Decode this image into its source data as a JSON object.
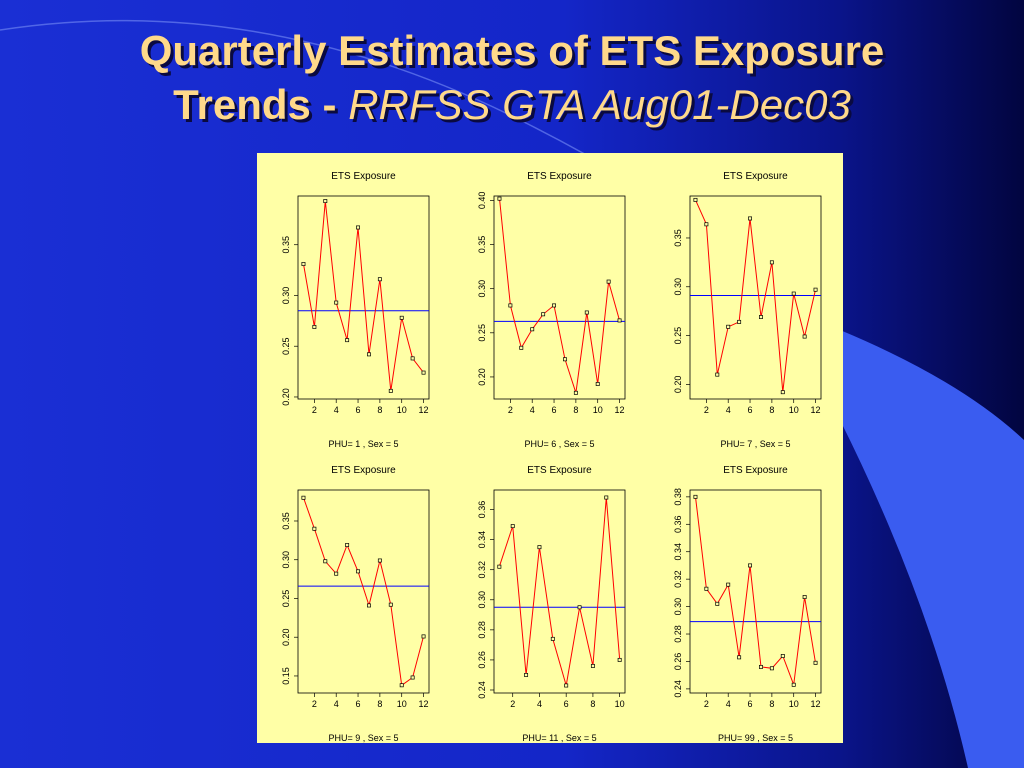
{
  "page": {
    "title_main": "Quarterly Estimates of  ETS Exposure",
    "title_line2_bold": "Trends - ",
    "title_line2_italic": "RRFSS GTA Aug01-Dec03"
  },
  "colors": {
    "background": "#1426c8",
    "panel": "#ffffa6",
    "series_line": "#ff0000",
    "reference_line": "#0000ff",
    "title_text": "#ffd98a"
  },
  "chart_data": [
    {
      "type": "line",
      "title": "ETS Exposure",
      "subtitle": "PHU= 1 , Sex = 5",
      "x": [
        1,
        2,
        3,
        4,
        5,
        6,
        7,
        8,
        9,
        10,
        11,
        12
      ],
      "values": [
        0.331,
        0.269,
        0.393,
        0.293,
        0.256,
        0.367,
        0.242,
        0.316,
        0.206,
        0.278,
        0.238,
        0.224
      ],
      "mean": 0.285,
      "xlim": [
        0.5,
        12.5
      ],
      "ylim": [
        0.198,
        0.398
      ],
      "xticks": [
        2,
        4,
        6,
        8,
        10,
        12
      ],
      "yticks": [
        0.2,
        0.25,
        0.3,
        0.35
      ],
      "ytick_labels": [
        "0.20",
        "0.25",
        "0.30",
        "0.35"
      ]
    },
    {
      "type": "line",
      "title": "ETS Exposure",
      "subtitle": "PHU= 6 , Sex = 5",
      "x": [
        1,
        2,
        3,
        4,
        5,
        6,
        7,
        8,
        9,
        10,
        11,
        12
      ],
      "values": [
        0.402,
        0.281,
        0.233,
        0.254,
        0.271,
        0.281,
        0.22,
        0.182,
        0.273,
        0.192,
        0.308,
        0.264
      ],
      "mean": 0.263,
      "xlim": [
        0.5,
        12.5
      ],
      "ylim": [
        0.175,
        0.405
      ],
      "xticks": [
        2,
        4,
        6,
        8,
        10,
        12
      ],
      "yticks": [
        0.2,
        0.25,
        0.3,
        0.35,
        0.4
      ],
      "ytick_labels": [
        "0.20",
        "0.25",
        "0.30",
        "0.35",
        "0.40"
      ]
    },
    {
      "type": "line",
      "title": "ETS Exposure",
      "subtitle": "PHU= 7 , Sex = 5",
      "x": [
        1,
        2,
        3,
        4,
        5,
        6,
        7,
        8,
        9,
        10,
        11,
        12
      ],
      "values": [
        0.389,
        0.364,
        0.21,
        0.259,
        0.264,
        0.37,
        0.269,
        0.325,
        0.192,
        0.293,
        0.249,
        0.297
      ],
      "mean": 0.291,
      "xlim": [
        0.5,
        12.5
      ],
      "ylim": [
        0.185,
        0.393
      ],
      "xticks": [
        2,
        4,
        6,
        8,
        10,
        12
      ],
      "yticks": [
        0.2,
        0.25,
        0.3,
        0.35
      ],
      "ytick_labels": [
        "0.20",
        "0.25",
        "0.30",
        "0.35"
      ]
    },
    {
      "type": "line",
      "title": "ETS Exposure",
      "subtitle": "PHU= 9 , Sex = 5",
      "x": [
        1,
        2,
        3,
        4,
        5,
        6,
        7,
        8,
        9,
        10,
        11,
        12
      ],
      "values": [
        0.38,
        0.34,
        0.298,
        0.282,
        0.319,
        0.285,
        0.241,
        0.299,
        0.242,
        0.138,
        0.148,
        0.201
      ],
      "mean": 0.266,
      "xlim": [
        0.5,
        12.5
      ],
      "ylim": [
        0.128,
        0.39
      ],
      "xticks": [
        2,
        4,
        6,
        8,
        10,
        12
      ],
      "yticks": [
        0.15,
        0.2,
        0.25,
        0.3,
        0.35
      ],
      "ytick_labels": [
        "0.15",
        "0.20",
        "0.25",
        "0.30",
        "0.35"
      ]
    },
    {
      "type": "line",
      "title": "ETS Exposure",
      "subtitle": "PHU= 11 , Sex = 5",
      "x": [
        1,
        2,
        3,
        4,
        5,
        6,
        7,
        8,
        9,
        10
      ],
      "values": [
        0.322,
        0.349,
        0.25,
        0.335,
        0.274,
        0.243,
        0.295,
        0.256,
        0.368,
        0.26
      ],
      "mean": 0.295,
      "xlim": [
        0.6,
        10.4
      ],
      "ylim": [
        0.238,
        0.373
      ],
      "xticks": [
        2,
        4,
        6,
        8,
        10
      ],
      "yticks": [
        0.24,
        0.26,
        0.28,
        0.3,
        0.32,
        0.34,
        0.36
      ],
      "ytick_labels": [
        "0.24",
        "0.26",
        "0.28",
        "0.30",
        "0.32",
        "0.34",
        "0.36"
      ]
    },
    {
      "type": "line",
      "title": "ETS Exposure",
      "subtitle": "PHU= 99 , Sex = 5",
      "x": [
        1,
        2,
        3,
        4,
        5,
        6,
        7,
        8,
        9,
        10,
        11,
        12
      ],
      "values": [
        0.38,
        0.313,
        0.302,
        0.316,
        0.263,
        0.33,
        0.256,
        0.255,
        0.264,
        0.243,
        0.307,
        0.259
      ],
      "mean": 0.289,
      "xlim": [
        0.5,
        12.5
      ],
      "ylim": [
        0.237,
        0.385
      ],
      "xticks": [
        2,
        4,
        6,
        8,
        10,
        12
      ],
      "yticks": [
        0.24,
        0.26,
        0.28,
        0.3,
        0.32,
        0.34,
        0.36,
        0.38
      ],
      "ytick_labels": [
        "0.24",
        "0.26",
        "0.28",
        "0.30",
        "0.32",
        "0.34",
        "0.36",
        "0.38"
      ]
    }
  ]
}
